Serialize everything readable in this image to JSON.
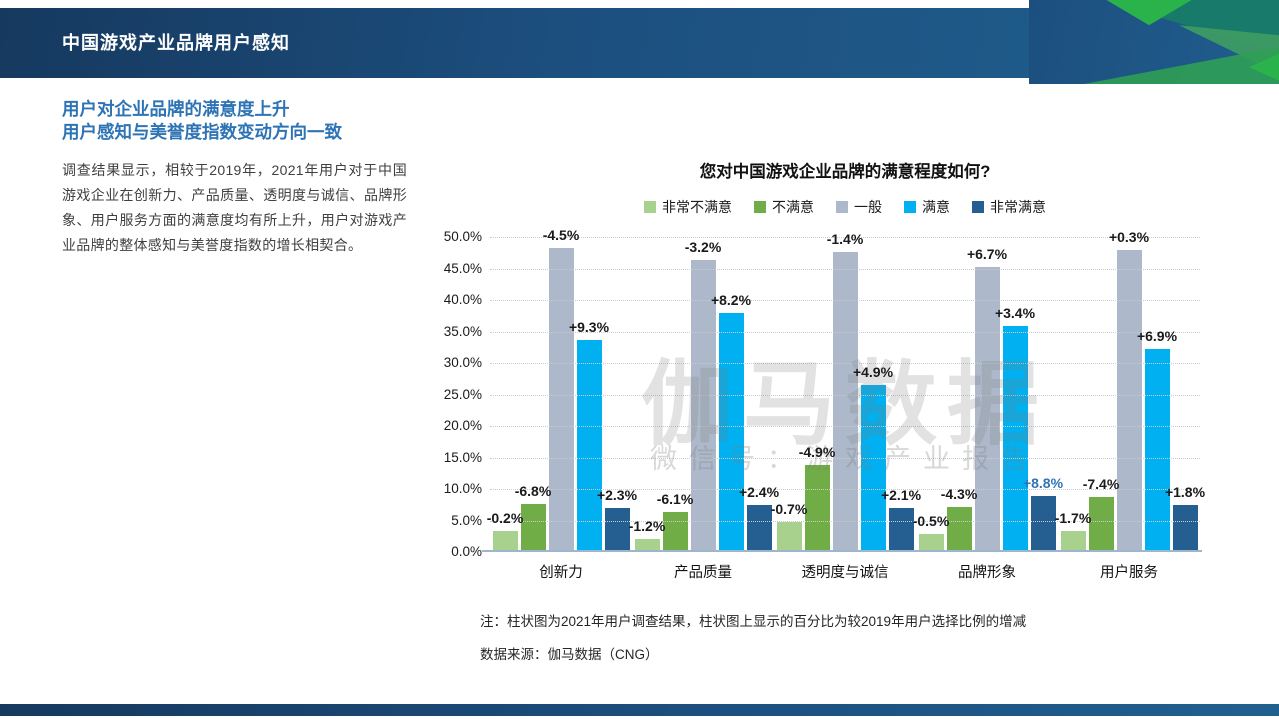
{
  "header": {
    "title": "中国游戏产业品牌用户感知"
  },
  "left_panel": {
    "heading_line1": "用户对企业品牌的满意度上升",
    "heading_line2": "用户感知与美誉度指数变动方向一致",
    "body": "调查结果显示，相较于2019年，2021年用户对于中国游戏企业在创新力、产品质量、透明度与诚信、品牌形象、用户服务方面的满意度均有所上升，用户对游戏产业品牌的整体感知与美誉度指数的增长相契合。"
  },
  "chart_data": {
    "type": "bar",
    "title": "您对中国游戏企业品牌的满意程度如何?",
    "categories": [
      "创新力",
      "产品质量",
      "透明度与诚信",
      "品牌形象",
      "用户服务"
    ],
    "series": [
      {
        "name": "非常不满意",
        "color": "#a9d18e",
        "values": [
          3.4,
          2.0,
          4.7,
          2.9,
          3.4
        ],
        "deltas": [
          "-0.2%",
          "-1.2%",
          "-0.7%",
          "-0.5%",
          "-1.7%"
        ]
      },
      {
        "name": "不满意",
        "color": "#70ad47",
        "values": [
          7.7,
          6.3,
          13.8,
          7.1,
          8.8
        ],
        "deltas": [
          "-6.8%",
          "-6.1%",
          "-4.9%",
          "-4.3%",
          "-7.4%"
        ]
      },
      {
        "name": "一般",
        "color": "#adb9ca",
        "values": [
          48.2,
          46.3,
          47.6,
          45.3,
          47.9
        ],
        "deltas": [
          "-4.5%",
          "-3.2%",
          "-1.4%",
          "+6.7%",
          "+0.3%"
        ]
      },
      {
        "name": "满意",
        "color": "#00b0f0",
        "values": [
          33.7,
          37.9,
          26.5,
          35.8,
          32.2
        ],
        "deltas": [
          "+9.3%",
          "+8.2%",
          "+4.9%",
          "+3.4%",
          "+6.9%"
        ]
      },
      {
        "name": "非常满意",
        "color": "#255e91",
        "values": [
          7.0,
          7.4,
          7.0,
          8.9,
          7.5
        ],
        "deltas": [
          "+2.3%",
          "+2.4%",
          "+2.1%",
          "+8.8%",
          "+1.8%"
        ]
      }
    ],
    "highlight_label": {
      "series_index": 4,
      "category_index": 3,
      "color": "#2e75b6"
    },
    "ylim": [
      0,
      50
    ],
    "ytick_step": 5,
    "ytick_labels": [
      "0.0%",
      "5.0%",
      "10.0%",
      "15.0%",
      "20.0%",
      "25.0%",
      "30.0%",
      "35.0%",
      "40.0%",
      "45.0%",
      "50.0%"
    ],
    "grid": true,
    "legend_position": "top",
    "delta_note": "柱状图上百分比为较2019年增减"
  },
  "watermark": {
    "line1": "伽马数据",
    "line2": "微信号：游戏产业报告"
  },
  "footnotes": {
    "note": "注：柱状图为2021年用户调查结果，柱状图上显示的百分比为较2019年用户选择比例的增减",
    "source": "数据来源：伽马数据（CNG）"
  },
  "colors": {
    "header_navy": "#1c4f7f",
    "heading_blue": "#2e74b5",
    "axis_line": "#9db6cb",
    "deco_bright_green": "#2bb34b",
    "deco_teal": "#187a6b",
    "deco_mid_green": "#3f9c63"
  }
}
